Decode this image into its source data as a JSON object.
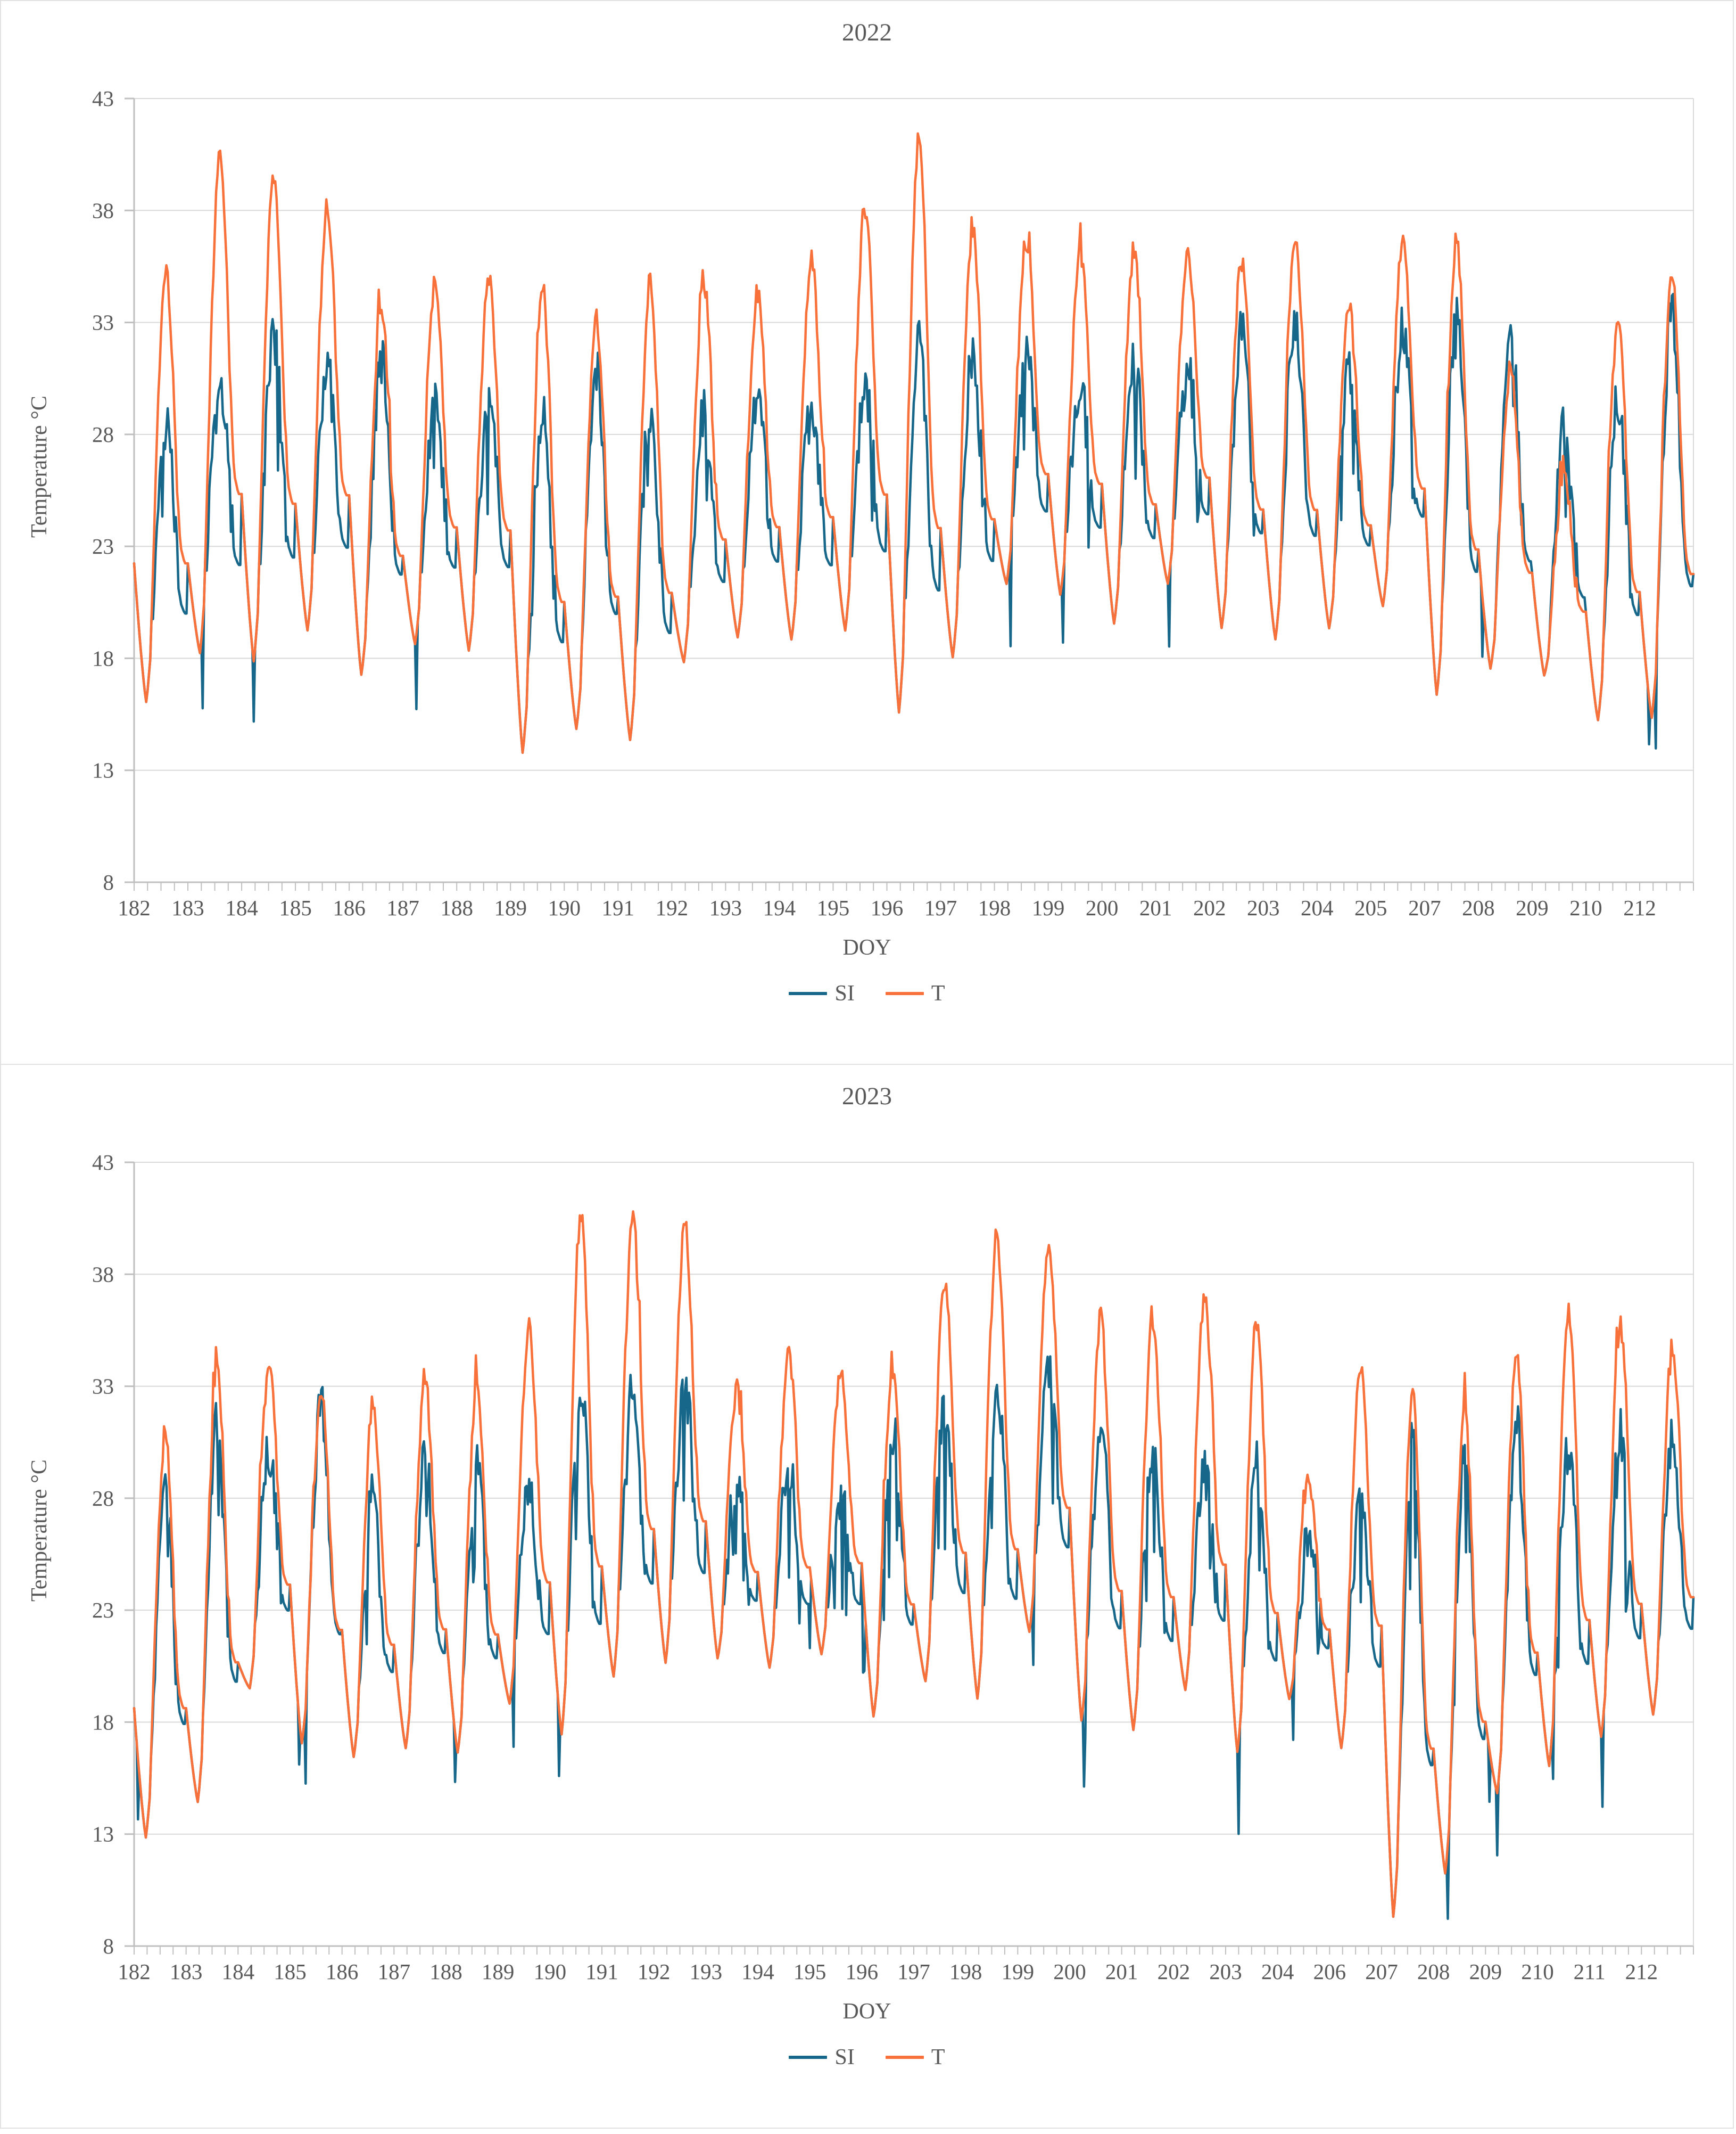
{
  "page": {
    "background": "#ffffff",
    "panel_border_color": "#e2e2e2",
    "text_color": "#595959",
    "gridline_color": "#d9d9d9",
    "axis_line_color": "#bfbfbf"
  },
  "chart_data": [
    {
      "type": "line",
      "title": "2022",
      "xlabel": "DOY",
      "ylabel": "Temperature °C",
      "ylim": [
        8,
        43
      ],
      "yticks": [
        8,
        13,
        18,
        23,
        28,
        33,
        38,
        43
      ],
      "grid": true,
      "legend_position": "bottom",
      "series_meta": [
        {
          "name": "SI",
          "color": "#17678A"
        },
        {
          "name": "T",
          "color": "#F8703A"
        }
      ],
      "x_tick_labels": [
        "182",
        "183",
        "184",
        "185",
        "186",
        "187",
        "188",
        "189",
        "190",
        "191",
        "192",
        "193",
        "194",
        "195",
        "196",
        "197",
        "198",
        "199",
        "200",
        "201",
        "202",
        "203",
        "204",
        "205",
        "207",
        "208",
        "209",
        "210",
        "212"
      ],
      "days_format": [
        "doy",
        "night_min_c",
        "t_day_max_c",
        "si_day_max_c"
      ],
      "days": [
        [
          182,
          16.0,
          35.5,
          28.5
        ],
        [
          183,
          18.2,
          40.5,
          30.6
        ],
        [
          184,
          17.8,
          40.0,
          32.5
        ],
        [
          185,
          19.2,
          38.2,
          30.9
        ],
        [
          186,
          17.2,
          34.0,
          31.4
        ],
        [
          187,
          18.6,
          35.0,
          29.4
        ],
        [
          188,
          18.3,
          35.2,
          30.1
        ],
        [
          189,
          13.7,
          35.0,
          29.4
        ],
        [
          190,
          14.8,
          33.4,
          31.0
        ],
        [
          191,
          14.3,
          35.0,
          29.4
        ],
        [
          192,
          17.8,
          35.0,
          29.1
        ],
        [
          193,
          18.9,
          34.4,
          29.6
        ],
        [
          194,
          18.8,
          36.0,
          29.3
        ],
        [
          195,
          19.2,
          38.3,
          30.4
        ],
        [
          196,
          15.5,
          41.5,
          32.8
        ],
        [
          197,
          18.0,
          37.4,
          31.6
        ],
        [
          198,
          21.3,
          36.7,
          31.5
        ],
        [
          199,
          20.8,
          36.4,
          30.3
        ],
        [
          200,
          19.5,
          36.3,
          31.6
        ],
        [
          201,
          21.3,
          36.2,
          31.1
        ],
        [
          202,
          19.3,
          36.0,
          32.7
        ],
        [
          203,
          18.8,
          37.0,
          33.4
        ],
        [
          204,
          19.3,
          33.8,
          31.0
        ],
        [
          205,
          20.3,
          36.8,
          32.9
        ],
        [
          207,
          16.3,
          36.8,
          33.7
        ],
        [
          208,
          17.5,
          31.0,
          32.6
        ],
        [
          209,
          17.2,
          26.2,
          28.2
        ],
        [
          210,
          15.2,
          33.2,
          30.0
        ],
        [
          212,
          15.3,
          35.5,
          33.8
        ]
      ]
    },
    {
      "type": "line",
      "title": "2023",
      "xlabel": "DOY",
      "ylabel": "Temperature °C",
      "ylim": [
        8,
        43
      ],
      "yticks": [
        8,
        13,
        18,
        23,
        28,
        33,
        38,
        43
      ],
      "grid": true,
      "legend_position": "bottom",
      "series_meta": [
        {
          "name": "SI",
          "color": "#17678A"
        },
        {
          "name": "T",
          "color": "#F8703A"
        }
      ],
      "x_tick_labels": [
        "182",
        "183",
        "184",
        "185",
        "186",
        "187",
        "188",
        "189",
        "190",
        "191",
        "192",
        "193",
        "194",
        "195",
        "196",
        "197",
        "198",
        "199",
        "200",
        "201",
        "202",
        "203",
        "204",
        "206",
        "207",
        "208",
        "209",
        "210",
        "211",
        "212"
      ],
      "days_format": [
        "doy",
        "night_min_c",
        "t_day_max_c",
        "si_day_max_c"
      ],
      "days": [
        [
          182,
          12.8,
          31.0,
          28.8
        ],
        [
          183,
          14.4,
          34.0,
          31.3
        ],
        [
          184,
          19.5,
          34.0,
          30.4
        ],
        [
          185,
          17.0,
          33.0,
          32.4
        ],
        [
          186,
          16.4,
          32.2,
          28.4
        ],
        [
          187,
          16.8,
          33.5,
          30.2
        ],
        [
          188,
          16.6,
          33.2,
          29.9
        ],
        [
          189,
          18.8,
          35.8,
          28.6
        ],
        [
          190,
          17.4,
          41.0,
          33.0
        ],
        [
          191,
          20.0,
          40.7,
          33.1
        ],
        [
          192,
          20.6,
          40.5,
          33.3
        ],
        [
          193,
          20.8,
          33.0,
          29.0
        ],
        [
          194,
          20.4,
          34.5,
          29.4
        ],
        [
          195,
          21.0,
          33.8,
          28.1
        ],
        [
          196,
          18.2,
          34.0,
          31.2
        ],
        [
          197,
          19.8,
          37.8,
          32.2
        ],
        [
          198,
          19.0,
          40.0,
          33.1
        ],
        [
          199,
          22.0,
          39.4,
          33.9
        ],
        [
          200,
          18.0,
          36.3,
          31.1
        ],
        [
          201,
          17.6,
          36.3,
          30.2
        ],
        [
          202,
          19.4,
          37.0,
          29.2
        ],
        [
          203,
          16.6,
          36.2,
          29.6
        ],
        [
          204,
          19.0,
          28.8,
          26.2
        ],
        [
          206,
          16.8,
          34.0,
          28.3
        ],
        [
          207,
          9.2,
          33.0,
          30.7
        ],
        [
          208,
          11.2,
          32.5,
          30.1
        ],
        [
          209,
          14.8,
          34.5,
          31.4
        ],
        [
          210,
          16.0,
          36.5,
          30.4
        ],
        [
          211,
          17.3,
          36.0,
          31.2
        ],
        [
          212,
          18.3,
          34.8,
          30.4
        ]
      ]
    }
  ],
  "diurnal_shape": [
    [
      0.0,
      0.32
    ],
    [
      0.08,
      0.18
    ],
    [
      0.17,
      0.06
    ],
    [
      0.23,
      0.0
    ],
    [
      0.3,
      0.1
    ],
    [
      0.36,
      0.34
    ],
    [
      0.44,
      0.66
    ],
    [
      0.52,
      0.9
    ],
    [
      0.58,
      1.0
    ],
    [
      0.64,
      0.96
    ],
    [
      0.71,
      0.8
    ],
    [
      0.79,
      0.52
    ],
    [
      0.86,
      0.36
    ],
    [
      0.94,
      0.32
    ],
    [
      1.0,
      0.32
    ]
  ]
}
